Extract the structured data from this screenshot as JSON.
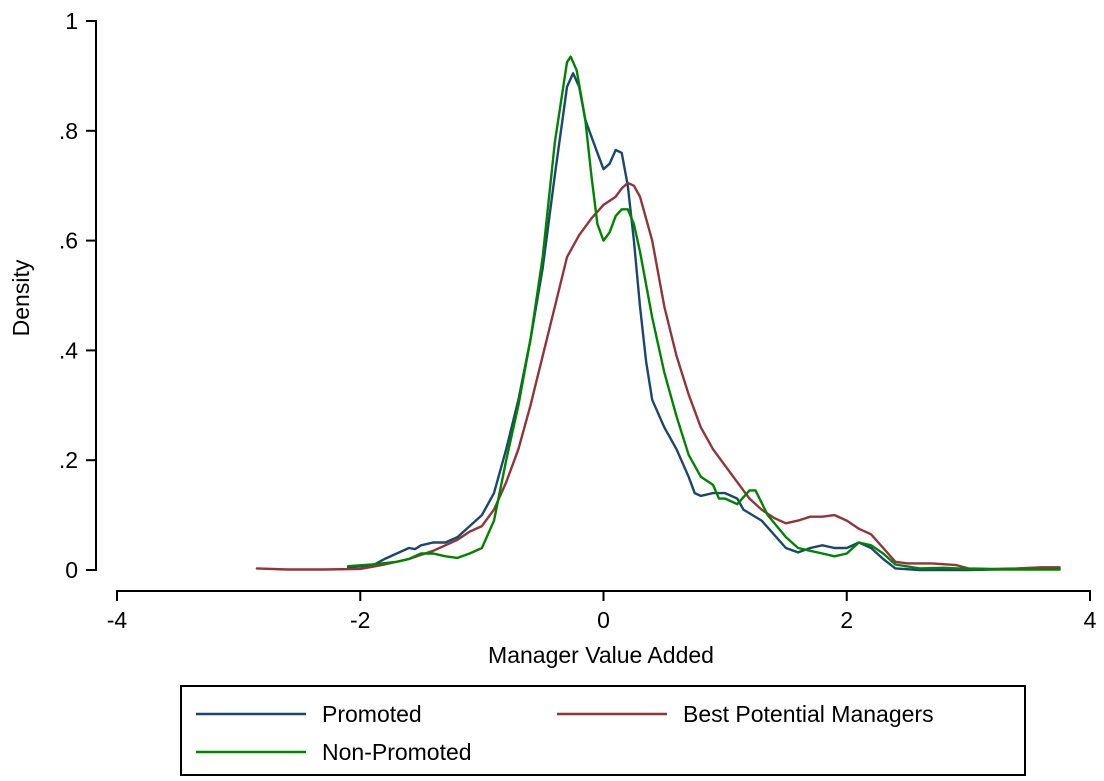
{
  "chart_data": {
    "type": "line",
    "title": "",
    "xlabel": "Manager Value Added",
    "ylabel": "Density",
    "xlim": [
      -4,
      4
    ],
    "ylim": [
      0,
      1
    ],
    "x_ticks": [
      -4,
      -2,
      0,
      2,
      4
    ],
    "x_tick_labels": [
      "-4",
      "-2",
      "0",
      "2",
      "4"
    ],
    "y_ticks": [
      0,
      0.2,
      0.4,
      0.6,
      0.8,
      1
    ],
    "y_tick_labels": [
      "0",
      ".2",
      ".4",
      ".6",
      ".8",
      "1"
    ],
    "grid": false,
    "legend_position": "bottom",
    "series": [
      {
        "name": "Promoted",
        "color": "#1a476f",
        "points": [
          [
            -2.1,
            0.005
          ],
          [
            -1.9,
            0.008
          ],
          [
            -1.8,
            0.02
          ],
          [
            -1.7,
            0.03
          ],
          [
            -1.6,
            0.04
          ],
          [
            -1.55,
            0.038
          ],
          [
            -1.5,
            0.045
          ],
          [
            -1.4,
            0.05
          ],
          [
            -1.3,
            0.05
          ],
          [
            -1.2,
            0.06
          ],
          [
            -1.1,
            0.08
          ],
          [
            -1.0,
            0.1
          ],
          [
            -0.9,
            0.14
          ],
          [
            -0.8,
            0.22
          ],
          [
            -0.7,
            0.31
          ],
          [
            -0.6,
            0.42
          ],
          [
            -0.5,
            0.55
          ],
          [
            -0.4,
            0.72
          ],
          [
            -0.3,
            0.88
          ],
          [
            -0.25,
            0.905
          ],
          [
            -0.2,
            0.88
          ],
          [
            -0.15,
            0.82
          ],
          [
            -0.1,
            0.79
          ],
          [
            -0.05,
            0.76
          ],
          [
            0,
            0.73
          ],
          [
            0.05,
            0.74
          ],
          [
            0.1,
            0.765
          ],
          [
            0.15,
            0.76
          ],
          [
            0.2,
            0.7
          ],
          [
            0.25,
            0.6
          ],
          [
            0.3,
            0.48
          ],
          [
            0.35,
            0.38
          ],
          [
            0.4,
            0.31
          ],
          [
            0.5,
            0.26
          ],
          [
            0.6,
            0.22
          ],
          [
            0.7,
            0.17
          ],
          [
            0.75,
            0.14
          ],
          [
            0.8,
            0.135
          ],
          [
            0.9,
            0.14
          ],
          [
            1.0,
            0.14
          ],
          [
            1.1,
            0.13
          ],
          [
            1.15,
            0.11
          ],
          [
            1.3,
            0.09
          ],
          [
            1.4,
            0.065
          ],
          [
            1.5,
            0.04
          ],
          [
            1.6,
            0.032
          ],
          [
            1.7,
            0.04
          ],
          [
            1.8,
            0.045
          ],
          [
            1.9,
            0.04
          ],
          [
            2.0,
            0.04
          ],
          [
            2.1,
            0.05
          ],
          [
            2.2,
            0.04
          ],
          [
            2.3,
            0.02
          ],
          [
            2.4,
            0.003
          ],
          [
            2.6,
            0.0
          ],
          [
            2.8,
            0.0
          ],
          [
            3.0,
            0.0
          ],
          [
            3.2,
            0.001
          ],
          [
            3.5,
            0.002
          ],
          [
            3.75,
            0.002
          ]
        ]
      },
      {
        "name": "Best Potential Managers",
        "color": "#90353b",
        "points": [
          [
            -2.85,
            0.003
          ],
          [
            -2.6,
            0.001
          ],
          [
            -2.3,
            0.001
          ],
          [
            -2.0,
            0.002
          ],
          [
            -1.8,
            0.01
          ],
          [
            -1.6,
            0.02
          ],
          [
            -1.4,
            0.035
          ],
          [
            -1.2,
            0.055
          ],
          [
            -1.1,
            0.07
          ],
          [
            -1.0,
            0.08
          ],
          [
            -0.9,
            0.11
          ],
          [
            -0.8,
            0.16
          ],
          [
            -0.7,
            0.22
          ],
          [
            -0.6,
            0.3
          ],
          [
            -0.5,
            0.39
          ],
          [
            -0.4,
            0.48
          ],
          [
            -0.3,
            0.57
          ],
          [
            -0.2,
            0.61
          ],
          [
            -0.1,
            0.64
          ],
          [
            0.0,
            0.665
          ],
          [
            0.1,
            0.68
          ],
          [
            0.15,
            0.695
          ],
          [
            0.2,
            0.705
          ],
          [
            0.25,
            0.7
          ],
          [
            0.3,
            0.68
          ],
          [
            0.4,
            0.6
          ],
          [
            0.5,
            0.48
          ],
          [
            0.6,
            0.39
          ],
          [
            0.7,
            0.32
          ],
          [
            0.8,
            0.26
          ],
          [
            0.9,
            0.22
          ],
          [
            1.0,
            0.19
          ],
          [
            1.1,
            0.16
          ],
          [
            1.2,
            0.13
          ],
          [
            1.3,
            0.11
          ],
          [
            1.4,
            0.095
          ],
          [
            1.5,
            0.085
          ],
          [
            1.6,
            0.09
          ],
          [
            1.7,
            0.097
          ],
          [
            1.8,
            0.097
          ],
          [
            1.9,
            0.1
          ],
          [
            2.0,
            0.09
          ],
          [
            2.1,
            0.075
          ],
          [
            2.2,
            0.065
          ],
          [
            2.3,
            0.04
          ],
          [
            2.4,
            0.015
          ],
          [
            2.5,
            0.012
          ],
          [
            2.7,
            0.012
          ],
          [
            2.9,
            0.009
          ],
          [
            3.0,
            0.003
          ],
          [
            3.2,
            0.002
          ],
          [
            3.4,
            0.003
          ],
          [
            3.6,
            0.005
          ],
          [
            3.75,
            0.005
          ]
        ]
      },
      {
        "name": "Non-Promoted",
        "color": "#008400",
        "points": [
          [
            -2.1,
            0.007
          ],
          [
            -1.9,
            0.01
          ],
          [
            -1.7,
            0.015
          ],
          [
            -1.6,
            0.02
          ],
          [
            -1.5,
            0.03
          ],
          [
            -1.4,
            0.03
          ],
          [
            -1.3,
            0.025
          ],
          [
            -1.2,
            0.022
          ],
          [
            -1.1,
            0.03
          ],
          [
            -1.0,
            0.04
          ],
          [
            -0.9,
            0.09
          ],
          [
            -0.8,
            0.2
          ],
          [
            -0.7,
            0.3
          ],
          [
            -0.6,
            0.42
          ],
          [
            -0.5,
            0.57
          ],
          [
            -0.4,
            0.78
          ],
          [
            -0.3,
            0.925
          ],
          [
            -0.27,
            0.935
          ],
          [
            -0.22,
            0.91
          ],
          [
            -0.15,
            0.82
          ],
          [
            -0.1,
            0.72
          ],
          [
            -0.05,
            0.63
          ],
          [
            0.0,
            0.6
          ],
          [
            0.05,
            0.615
          ],
          [
            0.1,
            0.645
          ],
          [
            0.15,
            0.657
          ],
          [
            0.2,
            0.657
          ],
          [
            0.25,
            0.63
          ],
          [
            0.3,
            0.58
          ],
          [
            0.4,
            0.46
          ],
          [
            0.5,
            0.36
          ],
          [
            0.6,
            0.28
          ],
          [
            0.7,
            0.21
          ],
          [
            0.8,
            0.17
          ],
          [
            0.9,
            0.155
          ],
          [
            0.95,
            0.13
          ],
          [
            1.0,
            0.13
          ],
          [
            1.1,
            0.12
          ],
          [
            1.2,
            0.145
          ],
          [
            1.25,
            0.145
          ],
          [
            1.35,
            0.1
          ],
          [
            1.5,
            0.06
          ],
          [
            1.6,
            0.04
          ],
          [
            1.7,
            0.035
          ],
          [
            1.8,
            0.03
          ],
          [
            1.9,
            0.025
          ],
          [
            2.0,
            0.03
          ],
          [
            2.1,
            0.05
          ],
          [
            2.2,
            0.045
          ],
          [
            2.3,
            0.03
          ],
          [
            2.4,
            0.01
          ],
          [
            2.6,
            0.003
          ],
          [
            2.8,
            0.004
          ],
          [
            3.0,
            0.002
          ],
          [
            3.3,
            0.001
          ],
          [
            3.6,
            0.001
          ],
          [
            3.75,
            0.001
          ]
        ]
      }
    ]
  }
}
